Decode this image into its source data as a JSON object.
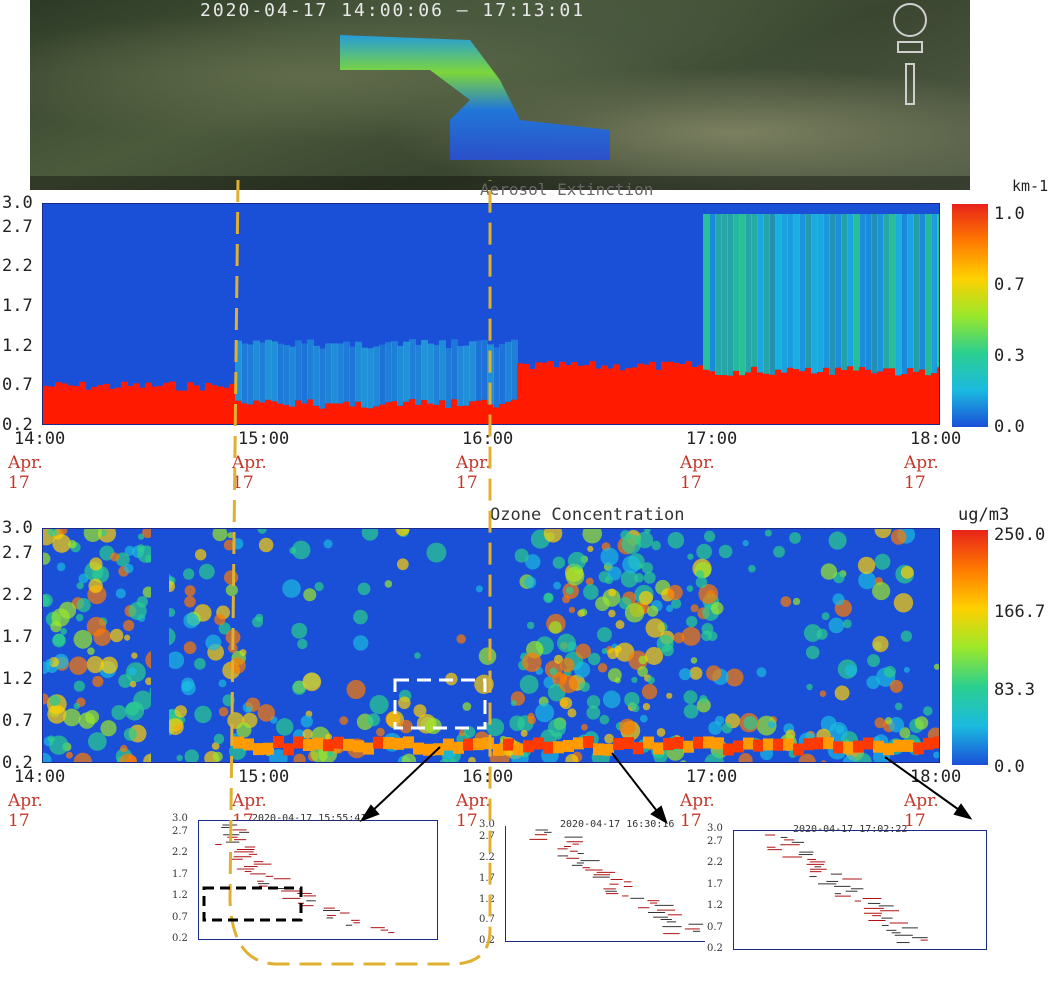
{
  "satellite": {
    "title": "2020-04-17 14:00:06 — 17:13:01"
  },
  "chart_data": [
    {
      "type": "heatmap",
      "title": "Aerosol Extinction",
      "colorbar_unit": "km-1",
      "colorbar_ticks": [
        "1.0",
        "0.7",
        "0.3",
        "0.0"
      ],
      "colorbar_range": [
        0.0,
        1.0
      ],
      "y_ticks": [
        "3.0",
        "2.7",
        "2.2",
        "1.7",
        "1.2",
        "0.7",
        "0.2"
      ],
      "y_range": [
        0.2,
        3.0
      ],
      "x_ticks": [
        "14:00",
        "15:00",
        "16:00",
        "17:00",
        "18:00"
      ],
      "x_dates": [
        "Apr. 17",
        "Apr. 17",
        "Apr. 17",
        "Apr. 17",
        "Apr. 17"
      ],
      "x_range": [
        "14:00",
        "18:00"
      ]
    },
    {
      "type": "heatmap",
      "title": "Ozone Concentration",
      "colorbar_unit": "ug/m3",
      "colorbar_ticks": [
        "250.0",
        "166.7",
        "83.3",
        "0.0"
      ],
      "colorbar_range": [
        0.0,
        250.0
      ],
      "y_ticks": [
        "3.0",
        "2.7",
        "2.2",
        "1.7",
        "1.2",
        "0.7",
        "0.2"
      ],
      "y_range": [
        0.2,
        3.0
      ],
      "x_ticks": [
        "14:00",
        "15:00",
        "16:00",
        "17:00",
        "18:00"
      ],
      "x_dates": [
        "Apr. 17",
        "Apr. 17",
        "Apr. 17",
        "Apr. 17",
        "Apr. 17"
      ],
      "x_range": [
        "14:00",
        "18:00"
      ]
    },
    {
      "type": "scatter",
      "title": "2020-04-17 15:55:41",
      "y_ticks": [
        "3.0",
        "2.7",
        "2.2",
        "1.7",
        "1.2",
        "0.7",
        "0.2"
      ],
      "y_range": [
        0.2,
        3.0
      ]
    },
    {
      "type": "scatter",
      "title": "2020-04-17 16:30:16",
      "y_ticks": [
        "3.0",
        "2.7",
        "2.2",
        "1.7",
        "1.2",
        "0.7",
        "0.2"
      ],
      "y_range": [
        0.2,
        3.0
      ]
    },
    {
      "type": "scatter",
      "title": "2020-04-17 17:02:22",
      "y_ticks": [
        "3.0",
        "2.7",
        "2.2",
        "1.7",
        "1.2",
        "0.7",
        "0.2"
      ],
      "y_range": [
        0.2,
        3.0
      ]
    }
  ],
  "colors": {
    "low": "#1a4fd8",
    "mid": "#3ad17a",
    "high": "#ff1a00",
    "frame": "#1b2a8a",
    "highlight_line": "#e0b030",
    "date_red": "#c0392b"
  }
}
